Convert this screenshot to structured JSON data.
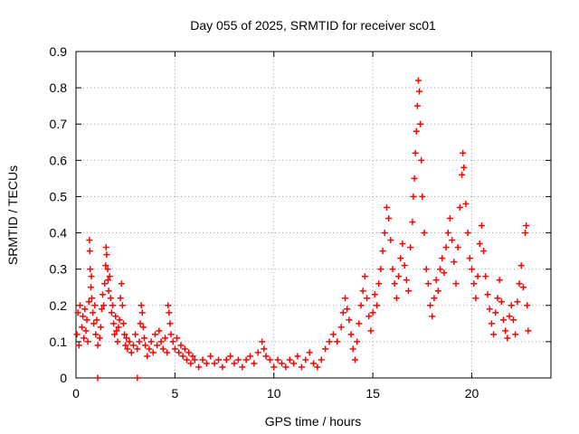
{
  "chart_data": {
    "type": "scatter",
    "title": "Day 055 of 2025, SRMTID for receiver sc01",
    "xlabel": "GPS time / hours",
    "ylabel": "SRMTID / TECUs",
    "xlim": [
      0,
      24
    ],
    "ylim": [
      0,
      0.9
    ],
    "xticks": [
      "0",
      "5",
      "10",
      "15",
      "20"
    ],
    "yticks": [
      "0",
      "0.1",
      "0.2",
      "0.3",
      "0.4",
      "0.5",
      "0.6",
      "0.7",
      "0.8",
      "0.9"
    ],
    "grid": true,
    "marker": "plus",
    "series": [
      {
        "name": "SRMTID",
        "color": "#ff0000",
        "points": [
          [
            0.05,
            0.12
          ],
          [
            0.1,
            0.18
          ],
          [
            0.15,
            0.09
          ],
          [
            0.2,
            0.2
          ],
          [
            0.3,
            0.14
          ],
          [
            0.35,
            0.17
          ],
          [
            0.4,
            0.11
          ],
          [
            0.45,
            0.19
          ],
          [
            0.5,
            0.13
          ],
          [
            0.55,
            0.16
          ],
          [
            0.6,
            0.1
          ],
          [
            0.65,
            0.21
          ],
          [
            0.68,
            0.38
          ],
          [
            0.7,
            0.35
          ],
          [
            0.72,
            0.3
          ],
          [
            0.75,
            0.25
          ],
          [
            0.78,
            0.28
          ],
          [
            0.8,
            0.22
          ],
          [
            0.85,
            0.18
          ],
          [
            0.9,
            0.15
          ],
          [
            0.95,
            0.2
          ],
          [
            1.0,
            0.12
          ],
          [
            1.05,
            0.16
          ],
          [
            1.1,
            0.09
          ],
          [
            1.2,
            0.11
          ],
          [
            1.25,
            0.14
          ],
          [
            1.3,
            0.19
          ],
          [
            1.35,
            0.23
          ],
          [
            1.4,
            0.2
          ],
          [
            1.45,
            0.26
          ],
          [
            1.5,
            0.31
          ],
          [
            1.52,
            0.36
          ],
          [
            1.55,
            0.34
          ],
          [
            1.6,
            0.3
          ],
          [
            1.62,
            0.27
          ],
          [
            1.65,
            0.24
          ],
          [
            1.7,
            0.28
          ],
          [
            1.75,
            0.22
          ],
          [
            1.8,
            0.18
          ],
          [
            1.85,
            0.2
          ],
          [
            1.9,
            0.15
          ],
          [
            1.95,
            0.12
          ],
          [
            2.0,
            0.17
          ],
          [
            2.05,
            0.13
          ],
          [
            2.1,
            0.1
          ],
          [
            2.15,
            0.14
          ],
          [
            2.2,
            0.16
          ],
          [
            2.25,
            0.22
          ],
          [
            2.3,
            0.26
          ],
          [
            2.35,
            0.2
          ],
          [
            2.4,
            0.15
          ],
          [
            2.45,
            0.12
          ],
          [
            2.5,
            0.09
          ],
          [
            2.55,
            0.11
          ],
          [
            2.6,
            0.08
          ],
          [
            2.7,
            0.1
          ],
          [
            2.8,
            0.07
          ],
          [
            2.9,
            0.09
          ],
          [
            3.0,
            0.12
          ],
          [
            3.1,
            0.08
          ],
          [
            3.2,
            0.1
          ],
          [
            3.25,
            0.15
          ],
          [
            3.3,
            0.2
          ],
          [
            3.35,
            0.18
          ],
          [
            3.4,
            0.14
          ],
          [
            3.45,
            0.11
          ],
          [
            3.5,
            0.09
          ],
          [
            3.6,
            0.06
          ],
          [
            3.7,
            0.08
          ],
          [
            3.8,
            0.1
          ],
          [
            3.9,
            0.07
          ],
          [
            4.0,
            0.12
          ],
          [
            4.1,
            0.09
          ],
          [
            4.2,
            0.13
          ],
          [
            4.3,
            0.1
          ],
          [
            4.4,
            0.08
          ],
          [
            4.5,
            0.11
          ],
          [
            4.6,
            0.07
          ],
          [
            4.65,
            0.2
          ],
          [
            4.7,
            0.18
          ],
          [
            4.75,
            0.15
          ],
          [
            4.8,
            0.12
          ],
          [
            4.9,
            0.1
          ],
          [
            5.0,
            0.08
          ],
          [
            5.1,
            0.11
          ],
          [
            5.2,
            0.07
          ],
          [
            5.3,
            0.09
          ],
          [
            5.4,
            0.06
          ],
          [
            5.5,
            0.08
          ],
          [
            5.6,
            0.05
          ],
          [
            5.7,
            0.07
          ],
          [
            5.8,
            0.04
          ],
          [
            5.9,
            0.06
          ],
          [
            6.0,
            0.05
          ],
          [
            6.2,
            0.03
          ],
          [
            6.4,
            0.05
          ],
          [
            6.6,
            0.04
          ],
          [
            6.8,
            0.06
          ],
          [
            7.0,
            0.04
          ],
          [
            7.2,
            0.05
          ],
          [
            7.4,
            0.03
          ],
          [
            7.6,
            0.05
          ],
          [
            7.8,
            0.06
          ],
          [
            8.0,
            0.04
          ],
          [
            8.2,
            0.05
          ],
          [
            8.4,
            0.03
          ],
          [
            8.6,
            0.05
          ],
          [
            8.8,
            0.06
          ],
          [
            9.0,
            0.04
          ],
          [
            9.2,
            0.07
          ],
          [
            9.4,
            0.1
          ],
          [
            9.5,
            0.08
          ],
          [
            9.6,
            0.06
          ],
          [
            9.8,
            0.05
          ],
          [
            10.0,
            0.03
          ],
          [
            10.2,
            0.05
          ],
          [
            10.4,
            0.04
          ],
          [
            10.6,
            0.03
          ],
          [
            10.8,
            0.05
          ],
          [
            11.0,
            0.04
          ],
          [
            11.2,
            0.06
          ],
          [
            11.4,
            0.03
          ],
          [
            11.6,
            0.05
          ],
          [
            11.8,
            0.07
          ],
          [
            12.0,
            0.04
          ],
          [
            12.2,
            0.03
          ],
          [
            12.4,
            0.05
          ],
          [
            12.6,
            0.08
          ],
          [
            12.8,
            0.1
          ],
          [
            13.0,
            0.12
          ],
          [
            13.2,
            0.1
          ],
          [
            13.4,
            0.14
          ],
          [
            13.5,
            0.18
          ],
          [
            13.6,
            0.22
          ],
          [
            13.7,
            0.19
          ],
          [
            13.8,
            0.16
          ],
          [
            13.9,
            0.12
          ],
          [
            14.0,
            0.08
          ],
          [
            14.1,
            0.05
          ],
          [
            14.2,
            0.1
          ],
          [
            14.3,
            0.15
          ],
          [
            14.4,
            0.2
          ],
          [
            14.5,
            0.24
          ],
          [
            14.6,
            0.28
          ],
          [
            14.7,
            0.22
          ],
          [
            14.8,
            0.17
          ],
          [
            14.9,
            0.13
          ],
          [
            15.0,
            0.18
          ],
          [
            15.1,
            0.23
          ],
          [
            15.2,
            0.2
          ],
          [
            15.3,
            0.26
          ],
          [
            15.4,
            0.3
          ],
          [
            15.5,
            0.35
          ],
          [
            15.6,
            0.4
          ],
          [
            15.7,
            0.47
          ],
          [
            15.8,
            0.44
          ],
          [
            15.9,
            0.38
          ],
          [
            16.0,
            0.3
          ],
          [
            16.1,
            0.26
          ],
          [
            16.2,
            0.22
          ],
          [
            16.3,
            0.28
          ],
          [
            16.4,
            0.33
          ],
          [
            16.5,
            0.37
          ],
          [
            16.6,
            0.31
          ],
          [
            16.7,
            0.27
          ],
          [
            16.8,
            0.24
          ],
          [
            16.9,
            0.36
          ],
          [
            17.0,
            0.43
          ],
          [
            17.05,
            0.5
          ],
          [
            17.1,
            0.55
          ],
          [
            17.15,
            0.62
          ],
          [
            17.2,
            0.68
          ],
          [
            17.25,
            0.75
          ],
          [
            17.3,
            0.82
          ],
          [
            17.35,
            0.79
          ],
          [
            17.4,
            0.7
          ],
          [
            17.45,
            0.6
          ],
          [
            17.5,
            0.5
          ],
          [
            17.6,
            0.4
          ],
          [
            17.7,
            0.3
          ],
          [
            17.8,
            0.26
          ],
          [
            17.9,
            0.2
          ],
          [
            18.0,
            0.17
          ],
          [
            18.1,
            0.22
          ],
          [
            18.2,
            0.27
          ],
          [
            18.3,
            0.24
          ],
          [
            18.4,
            0.3
          ],
          [
            18.5,
            0.33
          ],
          [
            18.6,
            0.29
          ],
          [
            18.7,
            0.36
          ],
          [
            18.8,
            0.4
          ],
          [
            18.9,
            0.44
          ],
          [
            19.0,
            0.38
          ],
          [
            19.1,
            0.32
          ],
          [
            19.2,
            0.26
          ],
          [
            19.3,
            0.36
          ],
          [
            19.4,
            0.47
          ],
          [
            19.5,
            0.56
          ],
          [
            19.55,
            0.62
          ],
          [
            19.6,
            0.58
          ],
          [
            19.7,
            0.48
          ],
          [
            19.8,
            0.4
          ],
          [
            19.9,
            0.33
          ],
          [
            20.0,
            0.3
          ],
          [
            20.1,
            0.26
          ],
          [
            20.2,
            0.22
          ],
          [
            20.3,
            0.28
          ],
          [
            20.4,
            0.37
          ],
          [
            20.5,
            0.42
          ],
          [
            20.6,
            0.35
          ],
          [
            20.7,
            0.28
          ],
          [
            20.8,
            0.23
          ],
          [
            20.9,
            0.19
          ],
          [
            21.0,
            0.15
          ],
          [
            21.1,
            0.12
          ],
          [
            21.2,
            0.18
          ],
          [
            21.3,
            0.22
          ],
          [
            21.4,
            0.27
          ],
          [
            21.5,
            0.21
          ],
          [
            21.6,
            0.16
          ],
          [
            21.7,
            0.13
          ],
          [
            21.8,
            0.11
          ],
          [
            21.9,
            0.17
          ],
          [
            22.0,
            0.2
          ],
          [
            22.1,
            0.16
          ],
          [
            22.2,
            0.12
          ],
          [
            22.3,
            0.21
          ],
          [
            22.4,
            0.26
          ],
          [
            22.5,
            0.31
          ],
          [
            22.6,
            0.25
          ],
          [
            22.7,
            0.4
          ],
          [
            22.75,
            0.42
          ],
          [
            22.8,
            0.2
          ],
          [
            22.85,
            0.13
          ],
          [
            1.1,
            0.0
          ],
          [
            3.1,
            0.0
          ]
        ]
      }
    ]
  }
}
